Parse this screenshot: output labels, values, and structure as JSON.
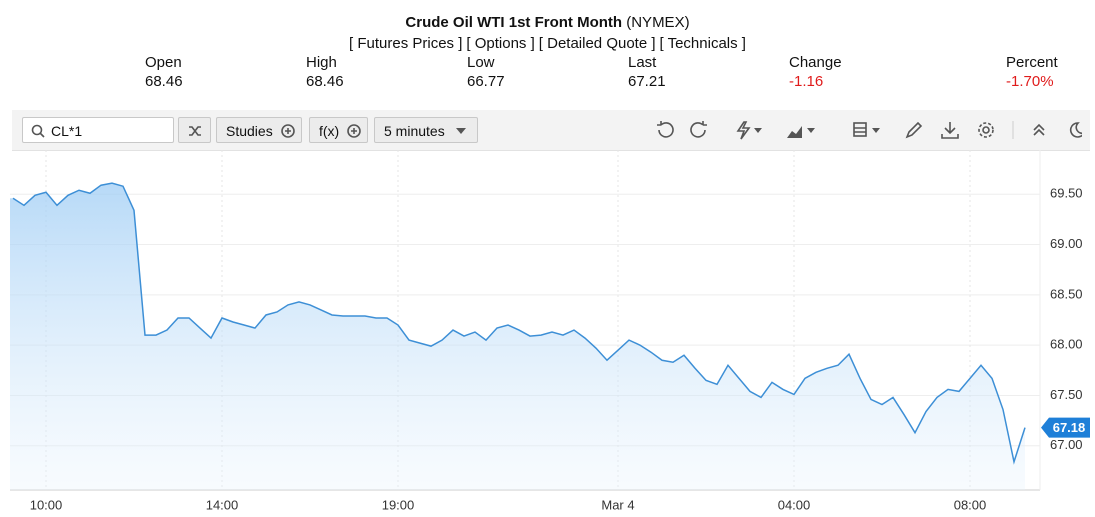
{
  "header": {
    "title": "Crude Oil WTI 1st Front Month",
    "exchange": "(NYMEX)",
    "links": [
      "[ Futures Prices ]",
      "[ Options ]",
      "[ Detailed Quote ]",
      "[ Technicals ]"
    ]
  },
  "quote": [
    {
      "label": "Open",
      "value": "68.46"
    },
    {
      "label": "High",
      "value": "68.46"
    },
    {
      "label": "Low",
      "value": "66.77"
    },
    {
      "label": "Last",
      "value": "67.21"
    },
    {
      "label": "Change",
      "value": "-1.16"
    },
    {
      "label": "Percent",
      "value": "-1.70%"
    }
  ],
  "toolbar": {
    "symbol": "CL*1",
    "studies": "Studies",
    "functions": "f(x)",
    "interval": "5 minutes"
  },
  "chart_data": {
    "type": "line",
    "color": "#3d8fd6",
    "grid": true,
    "categories": [
      null,
      null,
      null,
      "10:00",
      null,
      null,
      null,
      null,
      null,
      null,
      null,
      null,
      null,
      null,
      null,
      null,
      null,
      null,
      null,
      "14:00",
      null,
      null,
      null,
      null,
      null,
      null,
      null,
      null,
      null,
      null,
      null,
      null,
      null,
      null,
      null,
      "19:00",
      null,
      null,
      null,
      null,
      null,
      null,
      null,
      null,
      null,
      null,
      null,
      null,
      null,
      null,
      null,
      null,
      null,
      null,
      null,
      "Mar 4",
      null,
      null,
      null,
      null,
      null,
      null,
      null,
      null,
      null,
      null,
      null,
      null,
      null,
      null,
      null,
      "04:00",
      null,
      null,
      null,
      null,
      null,
      null,
      null,
      null,
      null,
      null,
      null,
      null,
      null,
      null,
      null,
      "08:00",
      null,
      null,
      null,
      null,
      null
    ],
    "values": [
      69.46,
      69.39,
      69.49,
      69.52,
      69.39,
      69.49,
      69.54,
      69.51,
      69.59,
      69.61,
      69.58,
      69.34,
      68.1,
      68.1,
      68.15,
      68.27,
      68.27,
      68.17,
      68.07,
      68.27,
      68.23,
      68.2,
      68.17,
      68.3,
      68.33,
      68.4,
      68.43,
      68.4,
      68.35,
      68.3,
      68.29,
      68.29,
      68.29,
      68.27,
      68.27,
      68.2,
      68.05,
      68.02,
      67.99,
      68.05,
      68.15,
      68.09,
      68.13,
      68.05,
      68.17,
      68.2,
      68.15,
      68.09,
      68.1,
      68.13,
      68.1,
      68.15,
      68.07,
      67.97,
      67.85,
      67.95,
      68.05,
      68.0,
      67.93,
      67.85,
      67.83,
      67.9,
      67.77,
      67.65,
      67.61,
      67.8,
      67.67,
      67.54,
      67.48,
      67.63,
      67.56,
      67.51,
      67.67,
      67.73,
      67.77,
      67.8,
      67.91,
      67.67,
      67.46,
      67.41,
      67.48,
      67.31,
      67.13,
      67.34,
      67.48,
      67.56,
      67.54,
      67.67,
      67.8,
      67.67,
      67.36,
      66.84,
      67.18
    ],
    "ylim": [
      66.56,
      69.94
    ],
    "yticks": [
      {
        "value": 67,
        "label": "67.00"
      },
      {
        "value": 67.5,
        "label": "67.50"
      },
      {
        "value": 68,
        "label": "68.00"
      },
      {
        "value": 68.5,
        "label": "68.50"
      },
      {
        "value": 69,
        "label": "69.00"
      },
      {
        "value": 69.5,
        "label": "69.50"
      }
    ]
  }
}
